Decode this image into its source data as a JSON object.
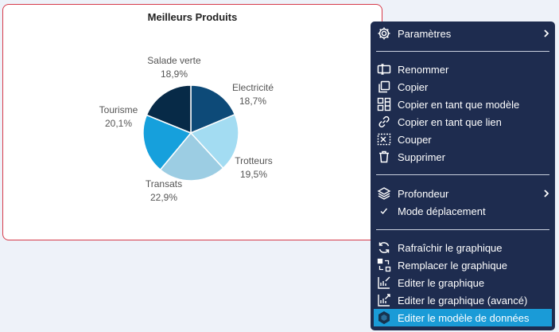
{
  "chart_data": {
    "type": "pie",
    "title": "Meilleurs Produits",
    "slices": [
      {
        "name": "Electricité",
        "value": 18.7,
        "label": "18,7%",
        "color": "#0d4a78"
      },
      {
        "name": "Trotteurs",
        "value": 19.5,
        "label": "19,5%",
        "color": "#a3dcf2"
      },
      {
        "name": "Transats",
        "value": 22.9,
        "label": "22,9%",
        "color": "#9ccde3"
      },
      {
        "name": "Tourisme",
        "value": 20.1,
        "label": "20,1%",
        "color": "#16a0dc"
      },
      {
        "name": "Salade verte",
        "value": 18.9,
        "label": "18,9%",
        "color": "#072a47"
      }
    ]
  },
  "context_menu": {
    "items": [
      {
        "id": "parametres",
        "icon": "gear-icon",
        "label": "Paramètres",
        "submenu": true
      },
      {
        "id": "renommer",
        "icon": "rename-icon",
        "label": "Renommer"
      },
      {
        "id": "copier",
        "icon": "copy-icon",
        "label": "Copier"
      },
      {
        "id": "copier-modele",
        "icon": "template-icon",
        "label": "Copier en tant que modèle"
      },
      {
        "id": "copier-lien",
        "icon": "link-icon",
        "label": "Copier en tant que lien"
      },
      {
        "id": "couper",
        "icon": "cut-icon",
        "label": "Couper"
      },
      {
        "id": "supprimer",
        "icon": "trash-icon",
        "label": "Supprimer"
      },
      {
        "id": "profondeur",
        "icon": "layers-icon",
        "label": "Profondeur",
        "submenu": true
      },
      {
        "id": "mode-deplacement",
        "icon": "check-icon",
        "label": "Mode déplacement"
      },
      {
        "id": "rafraichir",
        "icon": "refresh-icon",
        "label": "Rafraîchir le graphique"
      },
      {
        "id": "remplacer",
        "icon": "replace-icon",
        "label": "Remplacer le graphique"
      },
      {
        "id": "editer",
        "icon": "edit-chart-icon",
        "label": "Editer le graphique"
      },
      {
        "id": "editer-avance",
        "icon": "edit-chart-advanced-icon",
        "label": "Editer le graphique (avancé)"
      },
      {
        "id": "editer-modele-donnees",
        "icon": "data-model-icon",
        "label": "Editer le modèle de données",
        "highlighted": true
      }
    ]
  },
  "colors": {
    "menu_background": "#1e2c4f",
    "menu_highlight": "#1a9bd7",
    "card_border": "#d63a4a",
    "page_background": "#eef2f9"
  }
}
